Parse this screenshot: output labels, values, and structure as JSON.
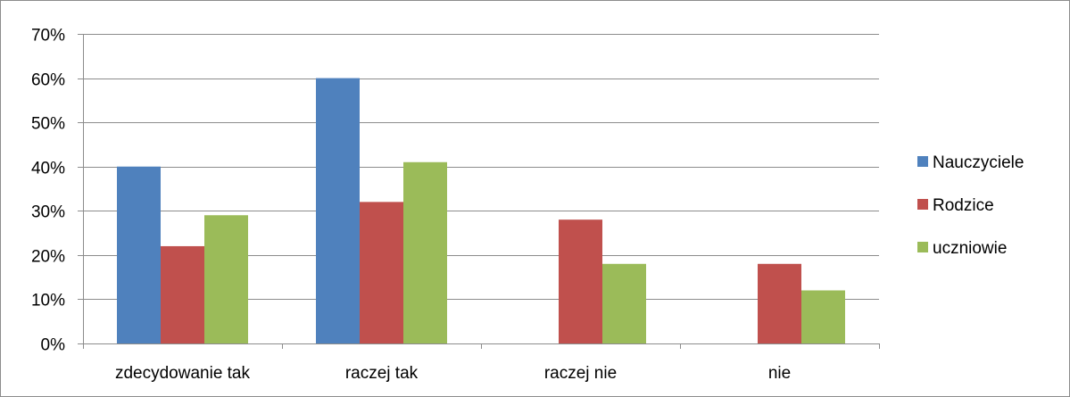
{
  "chart_data": {
    "type": "bar",
    "categories": [
      "zdecydowanie tak",
      "raczej tak",
      "raczej nie",
      "nie"
    ],
    "series": [
      {
        "name": "Nauczyciele",
        "values": [
          0.4,
          0.6,
          0,
          0
        ],
        "color": "#4f81bd"
      },
      {
        "name": "Rodzice",
        "values": [
          0.22,
          0.32,
          0.28,
          0.18
        ],
        "color": "#c0504d"
      },
      {
        "name": "uczniowie",
        "values": [
          0.29,
          0.41,
          0.18,
          0.12
        ],
        "color": "#9bbb59"
      }
    ],
    "ylim": [
      0,
      0.7
    ],
    "yticks": [
      0,
      0.1,
      0.2,
      0.3,
      0.4,
      0.5,
      0.6,
      0.7
    ],
    "ytick_labels": [
      "0%",
      "10%",
      "20%",
      "30%",
      "40%",
      "50%",
      "60%",
      "70%"
    ],
    "grid": true,
    "legend_position": "right",
    "gridline_color": "#8c8c8c",
    "axis_color": "#8c8c8c"
  }
}
